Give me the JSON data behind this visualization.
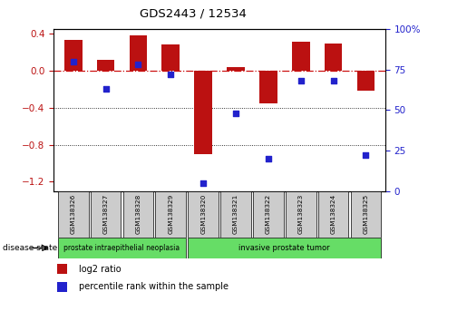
{
  "title": "GDS2443 / 12534",
  "samples": [
    "GSM138326",
    "GSM138327",
    "GSM138328",
    "GSM138329",
    "GSM138320",
    "GSM138321",
    "GSM138322",
    "GSM138323",
    "GSM138324",
    "GSM138325"
  ],
  "log2_ratio": [
    0.33,
    0.12,
    0.38,
    0.28,
    -0.9,
    0.04,
    -0.35,
    0.31,
    0.29,
    -0.22
  ],
  "percentile_rank": [
    80,
    63,
    78,
    72,
    5,
    48,
    20,
    68,
    68,
    22
  ],
  "ylim_left": [
    -1.3,
    0.45
  ],
  "ylim_right": [
    0,
    100
  ],
  "yticks_left": [
    0.4,
    0.0,
    -0.4,
    -0.8,
    -1.2
  ],
  "yticks_right": [
    100,
    75,
    50,
    25,
    0
  ],
  "ytick_right_labels": [
    "100%",
    "75",
    "50",
    "25",
    "0"
  ],
  "bar_color": "#bb1111",
  "dot_color": "#2222cc",
  "zero_line_color": "#cc1111",
  "grid_line_color": "#000000",
  "group1_label": "prostate intraepithelial neoplasia",
  "group2_label": "invasive prostate tumor",
  "group1_indices": [
    0,
    1,
    2,
    3
  ],
  "group2_indices": [
    4,
    5,
    6,
    7,
    8,
    9
  ],
  "group_bg_color": "#66dd66",
  "sample_bg_color": "#cccccc",
  "disease_state_label": "disease state",
  "legend_bar_label": "log2 ratio",
  "legend_dot_label": "percentile rank within the sample",
  "bar_width": 0.55
}
